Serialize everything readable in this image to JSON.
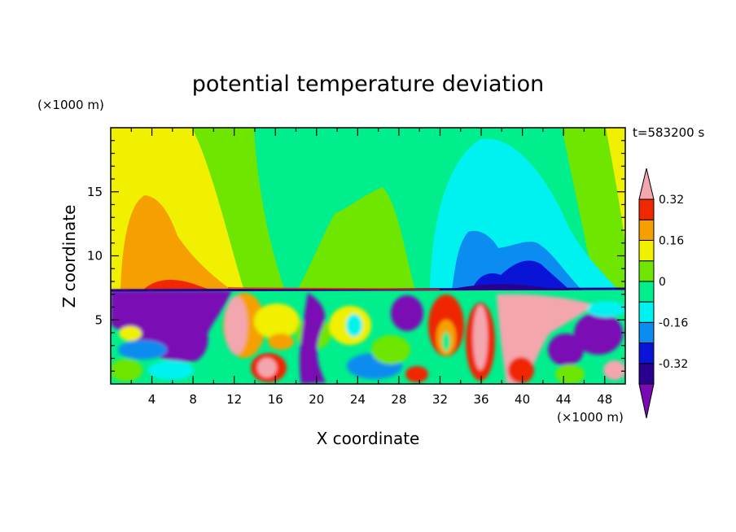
{
  "chart_data": {
    "type": "heatmap",
    "title": "potential temperature deviation",
    "xlabel": "X coordinate",
    "ylabel": "Z coordinate",
    "x_unit": "(×1000 m)",
    "y_unit": "(×1000 m)",
    "time_label": "t=583200 s",
    "xlim": [
      0,
      50
    ],
    "ylim": [
      0,
      20
    ],
    "x_ticks": [
      4,
      8,
      12,
      16,
      20,
      24,
      28,
      32,
      36,
      40,
      44,
      48
    ],
    "y_ticks": [
      5,
      10,
      15
    ],
    "colorbar": {
      "levels": [
        -0.4,
        -0.32,
        -0.24,
        -0.16,
        -0.08,
        0,
        0.08,
        0.16,
        0.24,
        0.32,
        0.4
      ],
      "labels": [
        "-0.32",
        "-0.16",
        "0",
        "0.16",
        "0.32"
      ],
      "label_values": [
        -0.32,
        -0.16,
        0,
        0.16,
        0.32
      ],
      "colors": [
        "#7a0ab4",
        "#2a008e",
        "#0a14d6",
        "#0a8cf0",
        "#00f2f0",
        "#00ee8c",
        "#6ee600",
        "#f0f000",
        "#f5a000",
        "#f02800",
        "#f4a6ae"
      ]
    }
  }
}
